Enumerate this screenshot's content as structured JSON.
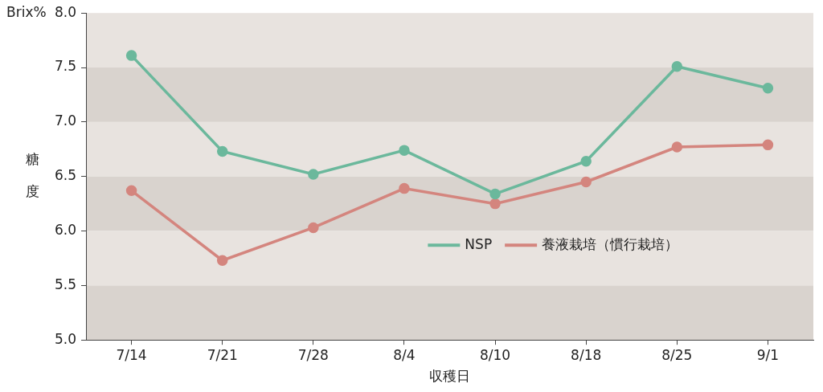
{
  "chart_data": {
    "type": "line",
    "y_unit": "Brix%",
    "ylabel": "糖度",
    "xlabel": "収穫日",
    "categories": [
      "7/14",
      "7/21",
      "7/28",
      "8/4",
      "8/10",
      "8/18",
      "8/25",
      "9/1"
    ],
    "series": [
      {
        "name": "NSP",
        "color": "#6bb89c",
        "marker": "circle",
        "values": [
          7.61,
          6.73,
          6.52,
          6.74,
          6.34,
          6.64,
          7.51,
          7.31
        ]
      },
      {
        "name": "養液栽培（慣行栽培）",
        "color": "#d4857e",
        "marker": "circle",
        "values": [
          6.37,
          5.73,
          6.03,
          6.39,
          6.25,
          6.45,
          6.77,
          6.79
        ]
      }
    ],
    "ylim": [
      5,
      8
    ],
    "yticks": [
      {
        "value": 5,
        "label": "5.0"
      },
      5.5,
      {
        "value": 6,
        "label": "6.0"
      },
      6.5,
      {
        "value": 7,
        "label": "7.0"
      },
      7.5,
      {
        "value": 8,
        "label": "8.0"
      }
    ],
    "grid": true,
    "legend": "center"
  }
}
